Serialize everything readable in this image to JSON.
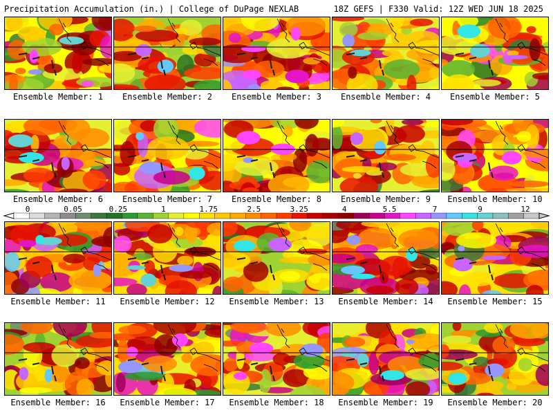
{
  "header": {
    "title_left": "Precipitation Accumulation (in.) | College of DuPage NEXLAB",
    "title_right": "18Z GEFS | F330 Valid: 12Z WED JUN 18 2025"
  },
  "members": [
    {
      "label": "Ensemble Member: 1",
      "intensity": 0.45
    },
    {
      "label": "Ensemble Member: 2",
      "intensity": 0.35
    },
    {
      "label": "Ensemble Member: 3",
      "intensity": 0.62
    },
    {
      "label": "Ensemble Member: 4",
      "intensity": 0.4
    },
    {
      "label": "Ensemble Member: 5",
      "intensity": 0.45
    },
    {
      "label": "Ensemble Member: 6",
      "intensity": 0.42
    },
    {
      "label": "Ensemble Member: 7",
      "intensity": 0.45
    },
    {
      "label": "Ensemble Member: 8",
      "intensity": 0.45
    },
    {
      "label": "Ensemble Member: 9",
      "intensity": 0.4
    },
    {
      "label": "Ensemble Member: 10",
      "intensity": 0.5
    },
    {
      "label": "Ensemble Member: 11",
      "intensity": 0.65
    },
    {
      "label": "Ensemble Member: 12",
      "intensity": 0.55
    },
    {
      "label": "Ensemble Member: 13",
      "intensity": 0.32
    },
    {
      "label": "Ensemble Member: 14",
      "intensity": 0.6
    },
    {
      "label": "Ensemble Member: 15",
      "intensity": 0.55
    },
    {
      "label": "Ensemble Member: 16",
      "intensity": 0.35
    },
    {
      "label": "Ensemble Member: 17",
      "intensity": 0.55
    },
    {
      "label": "Ensemble Member: 18",
      "intensity": 0.42
    },
    {
      "label": "Ensemble Member: 19",
      "intensity": 0.6
    },
    {
      "label": "Ensemble Member: 20",
      "intensity": 0.28
    }
  ],
  "colorbar": {
    "tick_labels": [
      "0",
      "0.05",
      "0.25",
      "1",
      "1.75",
      "2.5",
      "3.25",
      "4",
      "5.5",
      "7",
      "9",
      "12"
    ],
    "colors": [
      "#ffffff",
      "#dcdcdc",
      "#b4b4b4",
      "#8c8c8c",
      "#6e8c6e",
      "#3c783c",
      "#237323",
      "#2e9b2e",
      "#5ab432",
      "#a0d232",
      "#e6f032",
      "#ffff00",
      "#ffe100",
      "#ffc800",
      "#ffaa00",
      "#ff8c00",
      "#ff6400",
      "#ff3c00",
      "#e61400",
      "#c80000",
      "#aa0000",
      "#8c0000",
      "#a0005a",
      "#c8008c",
      "#e614c8",
      "#ff46ff",
      "#c864ff",
      "#9696ff",
      "#64c8ff",
      "#32e6e6",
      "#64d2d2",
      "#8cbebe",
      "#a0a0a0",
      "#c8c8c8"
    ]
  }
}
